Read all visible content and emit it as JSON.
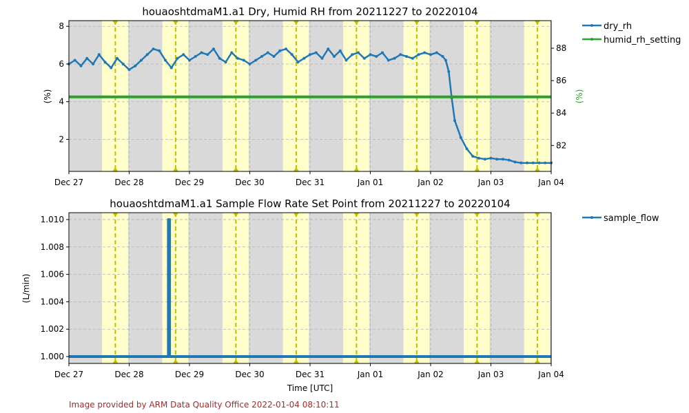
{
  "chart_data": [
    {
      "type": "line",
      "title": "houaoshtdmaM1.a1 Dry, Humid RH from 20211227 to 20220104",
      "xlabel": "",
      "ylabel": "(%)",
      "ylabel_right": "(%)",
      "x_ticks": [
        "Dec 27",
        "Dec 28",
        "Dec 29",
        "Dec 30",
        "Dec 31",
        "Jan 01",
        "Jan 02",
        "Jan 03",
        "Jan 04"
      ],
      "xlim_days": [
        0,
        8
      ],
      "ylim": [
        0.3,
        8.3
      ],
      "y_ticks": [
        2,
        4,
        6,
        8
      ],
      "ylim_right": [
        80.4,
        89.7
      ],
      "y_ticks_right": [
        82,
        84,
        86,
        88
      ],
      "grid": true,
      "legend_position": "outside-right",
      "series": [
        {
          "name": "dry_rh",
          "color": "#1f77b4",
          "axis": "left",
          "x_days": [
            0.0,
            0.1,
            0.2,
            0.3,
            0.4,
            0.5,
            0.6,
            0.7,
            0.8,
            0.9,
            1.0,
            1.1,
            1.2,
            1.3,
            1.4,
            1.5,
            1.6,
            1.7,
            1.8,
            1.9,
            2.0,
            2.1,
            2.2,
            2.3,
            2.4,
            2.5,
            2.6,
            2.7,
            2.8,
            2.9,
            3.0,
            3.1,
            3.2,
            3.3,
            3.4,
            3.5,
            3.6,
            3.7,
            3.8,
            3.9,
            4.0,
            4.1,
            4.2,
            4.3,
            4.4,
            4.5,
            4.6,
            4.7,
            4.8,
            4.9,
            5.0,
            5.1,
            5.2,
            5.3,
            5.4,
            5.5,
            5.6,
            5.7,
            5.8,
            5.9,
            6.0,
            6.1,
            6.2,
            6.25,
            6.3,
            6.35,
            6.4,
            6.5,
            6.6,
            6.7,
            6.8,
            6.9,
            7.0,
            7.1,
            7.2,
            7.3,
            7.4,
            7.5,
            7.6,
            7.7,
            7.8,
            7.9,
            8.0
          ],
          "y": [
            6.0,
            6.2,
            5.9,
            6.3,
            6.0,
            6.5,
            6.1,
            5.8,
            6.3,
            6.0,
            5.7,
            5.9,
            6.2,
            6.5,
            6.8,
            6.7,
            6.2,
            5.8,
            6.3,
            6.5,
            6.2,
            6.4,
            6.6,
            6.5,
            6.8,
            6.3,
            6.1,
            6.6,
            6.3,
            6.2,
            6.0,
            6.2,
            6.4,
            6.6,
            6.4,
            6.7,
            6.8,
            6.5,
            6.1,
            6.3,
            6.5,
            6.6,
            6.3,
            6.8,
            6.4,
            6.7,
            6.2,
            6.5,
            6.6,
            6.3,
            6.5,
            6.4,
            6.6,
            6.2,
            6.3,
            6.5,
            6.4,
            6.3,
            6.5,
            6.6,
            6.5,
            6.6,
            6.4,
            6.2,
            5.6,
            4.2,
            3.0,
            2.1,
            1.5,
            1.1,
            1.0,
            0.95,
            1.0,
            0.95,
            0.95,
            0.9,
            0.8,
            0.75,
            0.75,
            0.75,
            0.75,
            0.75,
            0.75
          ]
        },
        {
          "name": "humid_rh_setting",
          "color": "#2ca02c",
          "axis": "right",
          "x_days": [
            0,
            8
          ],
          "y": [
            85.0,
            85.0
          ]
        }
      ]
    },
    {
      "type": "line",
      "title": "houaoshtdmaM1.a1 Sample Flow Rate Set Point from 20211227 to 20220104",
      "xlabel": "Time [UTC]",
      "ylabel": "(L/min)",
      "x_ticks": [
        "Dec 27",
        "Dec 28",
        "Dec 29",
        "Dec 30",
        "Dec 31",
        "Jan 01",
        "Jan 02",
        "Jan 03",
        "Jan 04"
      ],
      "xlim_days": [
        0,
        8
      ],
      "ylim": [
        0.9995,
        1.0105
      ],
      "y_ticks": [
        1.0,
        1.002,
        1.004,
        1.006,
        1.008,
        1.01
      ],
      "y_tick_labels": [
        "1.000",
        "1.002",
        "1.004",
        "1.006",
        "1.008",
        "1.010"
      ],
      "grid": true,
      "legend_position": "outside-right",
      "series": [
        {
          "name": "sample_flow",
          "color": "#1f77b4",
          "x_days": [
            0,
            1.65,
            1.65,
            1.67,
            1.67,
            8
          ],
          "y": [
            1.0,
            1.0,
            1.01,
            1.01,
            1.0,
            1.0
          ]
        }
      ]
    }
  ],
  "shading": {
    "night_color": "#d9d9d9",
    "day_color": "#ffffcc",
    "noon_line_color": "#bfbf00",
    "day_spans_days": [
      [
        0.55,
        0.98
      ],
      [
        1.55,
        1.98
      ],
      [
        2.55,
        2.98
      ],
      [
        3.55,
        3.98
      ],
      [
        4.55,
        4.98
      ],
      [
        5.55,
        5.98
      ],
      [
        6.55,
        6.98
      ],
      [
        7.55,
        7.98
      ]
    ],
    "noon_marks_days": [
      0.77,
      1.77,
      2.77,
      3.77,
      4.77,
      5.77,
      6.77,
      7.77
    ]
  },
  "footer": "Image provided by ARM Data Quality Office 2022-01-04 08:10:11"
}
